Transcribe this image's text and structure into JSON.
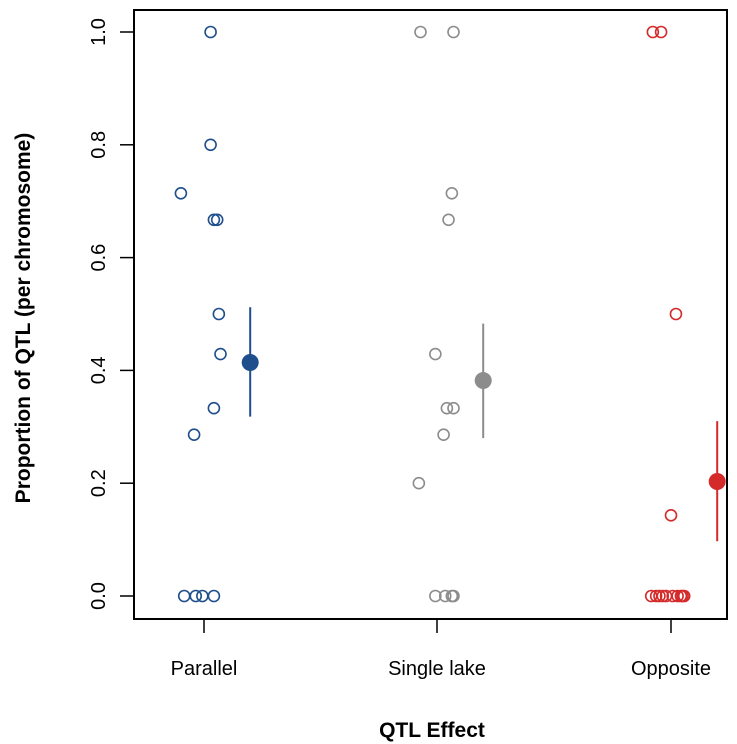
{
  "chart_data": {
    "type": "scatter",
    "xlabel": "QTL Effect",
    "ylabel": "Proportion of QTL (per chromosome)",
    "ylim": [
      0,
      1
    ],
    "yticks": [
      0,
      0.2,
      0.4,
      0.6,
      0.8,
      1.0
    ],
    "ytick_labels": [
      "0.0",
      "0.2",
      "0.4",
      "0.6",
      "0.8",
      "1.0"
    ],
    "categories": [
      "Parallel",
      "Single lake",
      "Opposite"
    ],
    "grid": false,
    "legend": "none",
    "series": [
      {
        "category": "Parallel",
        "color": "#1f4e8c",
        "points": [
          {
            "x": -0.14,
            "y": 0.714
          },
          {
            "x": 0.04,
            "y": 1.0
          },
          {
            "x": 0.04,
            "y": 0.8
          },
          {
            "x": 0.06,
            "y": 0.667
          },
          {
            "x": 0.08,
            "y": 0.667
          },
          {
            "x": 0.09,
            "y": 0.5
          },
          {
            "x": 0.1,
            "y": 0.429
          },
          {
            "x": 0.06,
            "y": 0.333
          },
          {
            "x": -0.06,
            "y": 0.286
          },
          {
            "x": -0.12,
            "y": 0.0
          },
          {
            "x": -0.05,
            "y": 0.0
          },
          {
            "x": -0.01,
            "y": 0.0
          },
          {
            "x": 0.06,
            "y": 0.0
          }
        ],
        "mean": 0.414,
        "ci": [
          0.318,
          0.512
        ]
      },
      {
        "category": "Single lake",
        "color": "#8c8c8c",
        "points": [
          {
            "x": -0.1,
            "y": 1.0
          },
          {
            "x": 0.1,
            "y": 1.0
          },
          {
            "x": 0.09,
            "y": 0.714
          },
          {
            "x": 0.07,
            "y": 0.667
          },
          {
            "x": -0.01,
            "y": 0.429
          },
          {
            "x": 0.06,
            "y": 0.333
          },
          {
            "x": 0.1,
            "y": 0.333
          },
          {
            "x": 0.04,
            "y": 0.286
          },
          {
            "x": -0.11,
            "y": 0.2
          },
          {
            "x": -0.01,
            "y": 0.0
          },
          {
            "x": 0.05,
            "y": 0.0
          },
          {
            "x": 0.09,
            "y": 0.0
          },
          {
            "x": 0.1,
            "y": 0.0
          }
        ],
        "mean": 0.382,
        "ci": [
          0.28,
          0.483
        ]
      },
      {
        "category": "Opposite",
        "color": "#d42a2a",
        "points": [
          {
            "x": -0.11,
            "y": 1.0
          },
          {
            "x": -0.06,
            "y": 1.0
          },
          {
            "x": 0.03,
            "y": 0.5
          },
          {
            "x": 0.0,
            "y": 0.143
          },
          {
            "x": -0.12,
            "y": 0.0
          },
          {
            "x": -0.09,
            "y": 0.0
          },
          {
            "x": -0.07,
            "y": 0.0
          },
          {
            "x": -0.05,
            "y": 0.0
          },
          {
            "x": -0.03,
            "y": 0.0
          },
          {
            "x": 0.01,
            "y": 0.0
          },
          {
            "x": 0.04,
            "y": 0.0
          },
          {
            "x": 0.06,
            "y": 0.0
          },
          {
            "x": 0.07,
            "y": 0.0
          },
          {
            "x": 0.08,
            "y": 0.0
          }
        ],
        "mean": 0.203,
        "ci": [
          0.097,
          0.31
        ]
      }
    ]
  }
}
